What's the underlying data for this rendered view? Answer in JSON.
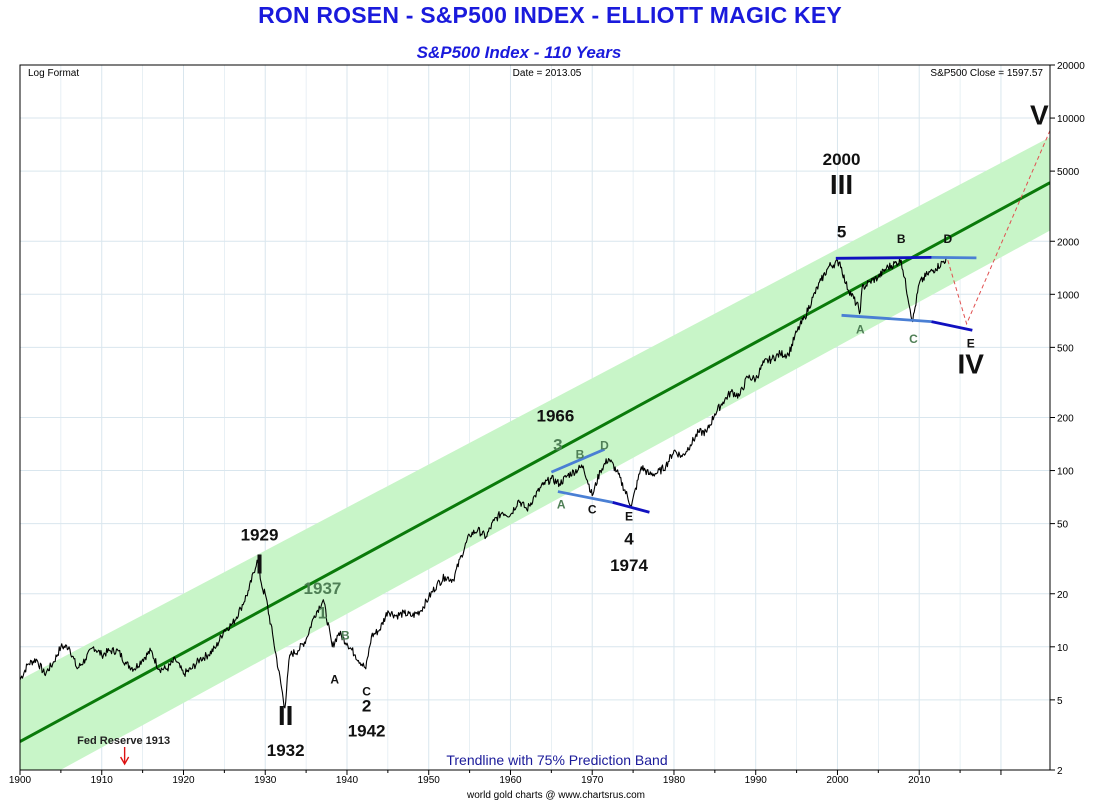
{
  "title": "RON ROSEN - S&P500 INDEX - ELLIOTT MAGIC KEY",
  "subtitle": "S&P500 Index - 110 Years",
  "corner_left": "Log Format",
  "corner_center": "Date = 2013.05",
  "corner_right": "S&P500 Close = 1597.57",
  "band_caption": "Trendline with 75% Prediction Band",
  "credit": "world gold charts @ www.chartsrus.com",
  "colors": {
    "title": "#1a1adc",
    "price": "#000000",
    "trend": "#0a7a0a",
    "band": "#c8f5c8",
    "wave_line": "#4a7fd4",
    "wave_line_dark": "#1010c0",
    "projection": "#e05050",
    "grid": "#d9e6ee",
    "fed_arrow": "#dd1111",
    "green_label": "#4f7f56"
  },
  "chart_data": {
    "type": "line",
    "title": "S&P500 Index - 110 Years",
    "xlabel": "",
    "ylabel": "",
    "y_scale": "log",
    "xlim": [
      1900,
      2026
    ],
    "ylim": [
      2,
      20000
    ],
    "grid": true,
    "x_ticks": [
      "1900",
      "1910",
      "1920",
      "1930",
      "1940",
      "1950",
      "1960",
      "1970",
      "1980",
      "1990",
      "2000",
      "2010"
    ],
    "y_ticks": [
      "2",
      "5",
      "10",
      "20",
      "50",
      "100",
      "200",
      "500",
      "1000",
      "2000",
      "5000",
      "10000",
      "20000"
    ],
    "series": [
      {
        "name": "",
        "x": [
          1900,
          1901,
          1902,
          1903,
          1904,
          1905,
          1906,
          1907,
          1908,
          1909,
          1910,
          1911,
          1912,
          1913,
          1914,
          1915,
          1916,
          1917,
          1918,
          1919,
          1920,
          1921,
          1922,
          1923,
          1924,
          1925,
          1926,
          1927,
          1928,
          1929.0,
          1929.7,
          1930,
          1931,
          1932.4,
          1933,
          1934,
          1935,
          1936,
          1937.1,
          1938.2,
          1939,
          1940,
          1941,
          1942.3,
          1943,
          1944,
          1945,
          1946,
          1947,
          1948,
          1949,
          1950,
          1951,
          1952,
          1953,
          1954,
          1955,
          1956,
          1957,
          1958,
          1959,
          1960,
          1961,
          1962,
          1963,
          1964,
          1965,
          1966,
          1967,
          1968.9,
          1970,
          1971,
          1972,
          1973,
          1974.8,
          1976,
          1977,
          1978,
          1979,
          1980,
          1981,
          1982,
          1983,
          1984,
          1985,
          1986,
          1987,
          1988,
          1989,
          1990,
          1991,
          1992,
          1993,
          1994,
          1995,
          1996,
          1997,
          1998,
          1999,
          2000.3,
          2001,
          2002.8,
          2003,
          2004,
          2005,
          2006,
          2007.8,
          2009.2,
          2010,
          2011,
          2012,
          2013.4
        ],
        "values": [
          6.5,
          8.0,
          8.5,
          7.0,
          8.0,
          10.0,
          10.0,
          7.5,
          8.5,
          10.0,
          9.0,
          9.5,
          9.5,
          8.0,
          7.5,
          8.5,
          9.5,
          7.5,
          7.5,
          8.5,
          7.0,
          7.5,
          8.5,
          9.0,
          10.0,
          12.5,
          13.5,
          16.5,
          21.0,
          31.0,
          21.0,
          20.0,
          11.0,
          4.5,
          9.0,
          9.5,
          11.0,
          15.0,
          18.5,
          10.0,
          12.0,
          10.5,
          9.0,
          7.5,
          11.5,
          12.5,
          16.0,
          15.0,
          15.5,
          15.0,
          16.0,
          19.0,
          22.5,
          25.0,
          24.0,
          33.0,
          43.0,
          46.0,
          42.0,
          52.0,
          58.0,
          56.0,
          68.0,
          60.0,
          72.0,
          83.0,
          90.0,
          84.0,
          94.0,
          106.0,
          72.0,
          100.0,
          117.0,
          99.0,
          63.0,
          105.0,
          95.0,
          97.0,
          106.0,
          130.0,
          120.0,
          140.0,
          165.0,
          165.0,
          210.0,
          245.0,
          280.0,
          265.0,
          340.0,
          330.0,
          410.0,
          430.0,
          460.0,
          455.0,
          610.0,
          740.0,
          960.0,
          1200.0,
          1450.0,
          1527.0,
          1150.0,
          800.0,
          1080.0,
          1180.0,
          1250.0,
          1410.0,
          1560.0,
          700.0,
          1150.0,
          1300.0,
          1400.0,
          1597.57
        ]
      },
      {
        "name": "Trendline",
        "x": [
          1900,
          2026
        ],
        "values": [
          2.9,
          4300
        ]
      },
      {
        "name": "Upper Band",
        "x": [
          1900,
          2026
        ],
        "values": [
          6.5,
          7800
        ]
      },
      {
        "name": "Lower Band",
        "x": [
          1900,
          2026
        ],
        "values": [
          1.5,
          2300
        ]
      }
    ],
    "wave_lines": [
      {
        "color": "wave_line",
        "x": [
          1965.0,
          1971.5
        ],
        "y": [
          98,
          132
        ]
      },
      {
        "color": "wave_line",
        "x": [
          1965.8,
          1972.5
        ],
        "y": [
          76,
          66
        ]
      },
      {
        "color": "wave_line_dark",
        "x": [
          1972.5,
          1977.0
        ],
        "y": [
          66,
          58
        ]
      },
      {
        "color": "wave_line_dark",
        "x": [
          1999.8,
          2011.5
        ],
        "y": [
          1600,
          1620
        ]
      },
      {
        "color": "wave_line",
        "x": [
          2011.5,
          2017.0
        ],
        "y": [
          1620,
          1610
        ]
      },
      {
        "color": "wave_line",
        "x": [
          2000.5,
          2011.5
        ],
        "y": [
          760,
          700
        ]
      },
      {
        "color": "wave_line_dark",
        "x": [
          2011.5,
          2016.5
        ],
        "y": [
          700,
          625
        ]
      }
    ],
    "projection": {
      "x": [
        2013.5,
        2015.8,
        2026.0
      ],
      "y": [
        1560,
        680,
        8500
      ]
    },
    "annotations": [
      {
        "text": "1929",
        "x": 1929.3,
        "y": 40,
        "size": 17,
        "color": "#111111"
      },
      {
        "text": "I",
        "x": 1929.3,
        "y": 26,
        "size": 28,
        "color": "#111111"
      },
      {
        "text": "1937",
        "x": 1937.0,
        "y": 20,
        "size": 17,
        "color": "green_label"
      },
      {
        "text": "1",
        "x": 1937.0,
        "y": 14.5,
        "size": 17,
        "color": "green_label"
      },
      {
        "text": "B",
        "x": 1939.8,
        "y": 11.0,
        "size": 12,
        "color": "green_label"
      },
      {
        "text": "A",
        "x": 1938.5,
        "y": 6.2,
        "size": 12,
        "color": "#111111"
      },
      {
        "text": "C",
        "x": 1942.4,
        "y": 5.3,
        "size": 12,
        "color": "#111111"
      },
      {
        "text": "2",
        "x": 1942.4,
        "y": 4.3,
        "size": 17,
        "color": "#111111"
      },
      {
        "text": "1942",
        "x": 1942.4,
        "y": 3.1,
        "size": 17,
        "color": "#111111"
      },
      {
        "text": "II",
        "x": 1932.5,
        "y": 3.6,
        "size": 28,
        "color": "#111111"
      },
      {
        "text": "1932",
        "x": 1932.5,
        "y": 2.4,
        "size": 17,
        "color": "#111111"
      },
      {
        "text": "1966",
        "x": 1965.5,
        "y": 190,
        "size": 17,
        "color": "#111111"
      },
      {
        "text": "3",
        "x": 1965.8,
        "y": 130,
        "size": 17,
        "color": "green_label"
      },
      {
        "text": "B",
        "x": 1968.5,
        "y": 117,
        "size": 12,
        "color": "green_label"
      },
      {
        "text": "D",
        "x": 1971.5,
        "y": 132,
        "size": 12,
        "color": "green_label"
      },
      {
        "text": "A",
        "x": 1966.2,
        "y": 61,
        "size": 12,
        "color": "green_label"
      },
      {
        "text": "C",
        "x": 1970.0,
        "y": 57,
        "size": 12,
        "color": "#111111"
      },
      {
        "text": "E",
        "x": 1974.5,
        "y": 52,
        "size": 12,
        "color": "#111111"
      },
      {
        "text": "4",
        "x": 1974.5,
        "y": 38,
        "size": 17,
        "color": "#111111"
      },
      {
        "text": "1974",
        "x": 1974.5,
        "y": 27,
        "size": 17,
        "color": "#111111"
      },
      {
        "text": "2000",
        "x": 2000.5,
        "y": 5400,
        "size": 17,
        "color": "#111111"
      },
      {
        "text": "III",
        "x": 2000.5,
        "y": 3700,
        "size": 28,
        "color": "#111111"
      },
      {
        "text": "5",
        "x": 2000.5,
        "y": 2100,
        "size": 17,
        "color": "#111111"
      },
      {
        "text": "B",
        "x": 2007.8,
        "y": 1950,
        "size": 12,
        "color": "#111111"
      },
      {
        "text": "D",
        "x": 2013.5,
        "y": 1950,
        "size": 12,
        "color": "#111111"
      },
      {
        "text": "A",
        "x": 2002.8,
        "y": 600,
        "size": 12,
        "color": "green_label"
      },
      {
        "text": "C",
        "x": 2009.3,
        "y": 530,
        "size": 12,
        "color": "green_label"
      },
      {
        "text": "E",
        "x": 2016.3,
        "y": 500,
        "size": 12,
        "color": "#111111"
      },
      {
        "text": "IV",
        "x": 2016.3,
        "y": 355,
        "size": 28,
        "color": "#111111"
      },
      {
        "text": "V",
        "x": 2024.7,
        "y": 9200,
        "size": 28,
        "color": "#111111"
      }
    ],
    "fed_marker": {
      "text": "Fed Reserve 1913",
      "x": 1912.8
    }
  }
}
